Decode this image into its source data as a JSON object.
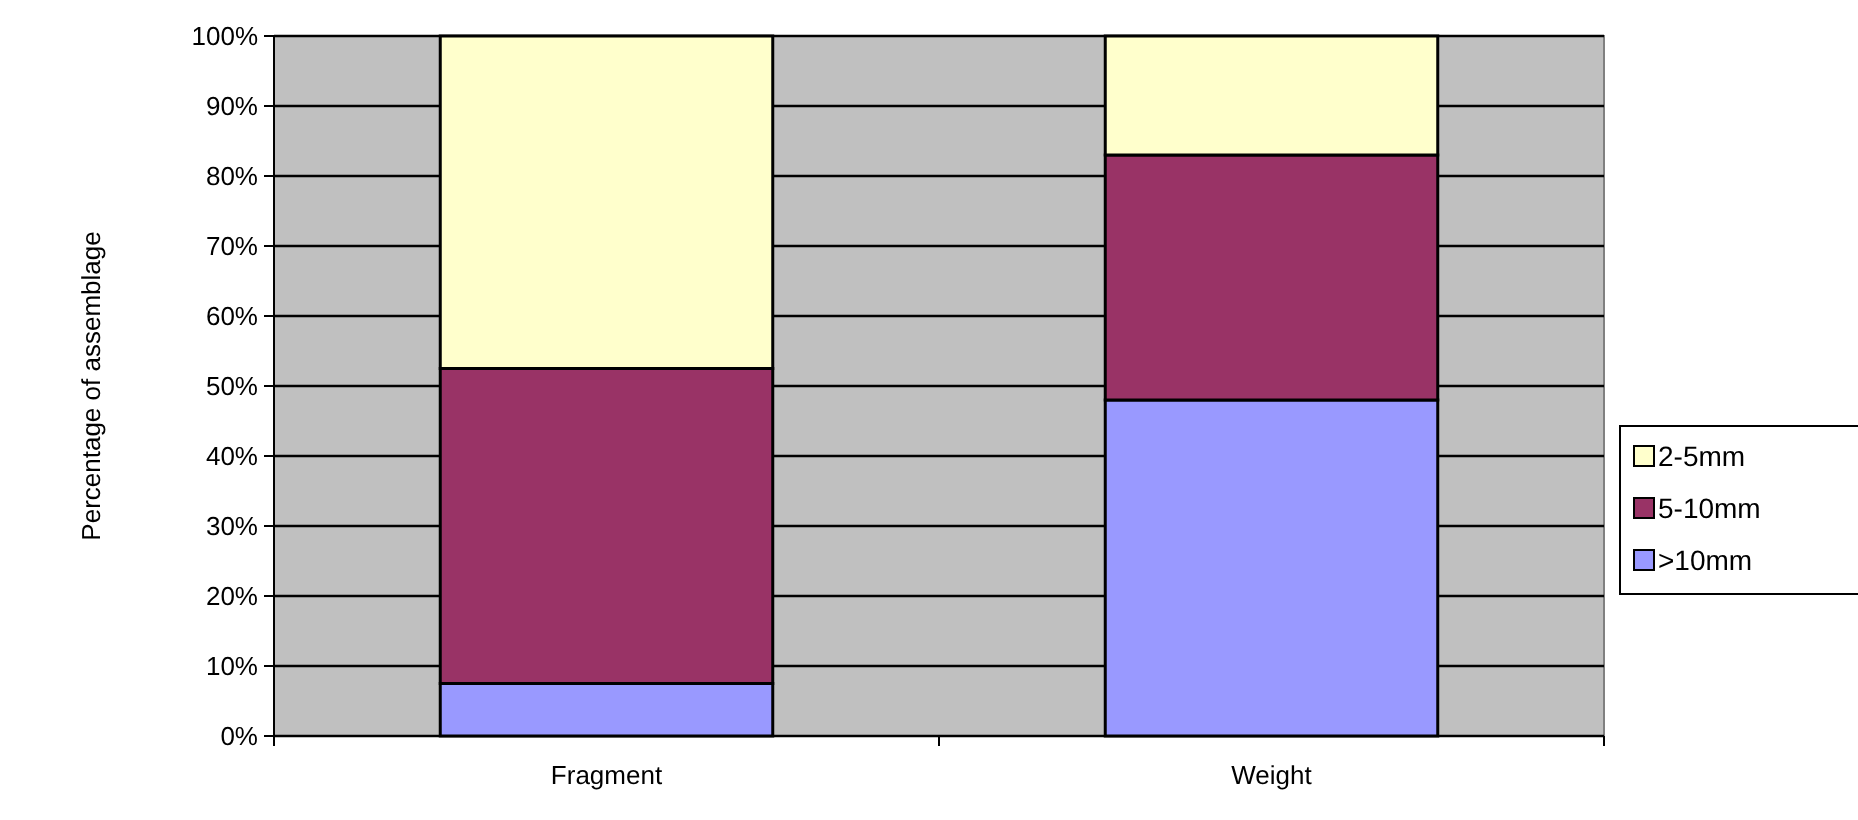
{
  "chart_data": {
    "type": "bar",
    "stacked": true,
    "ylabel": "Percentage of assemblage",
    "categories": [
      "Fragment",
      "Weight"
    ],
    "series": [
      {
        "name": ">10mm",
        "color": "#9999ff",
        "values": [
          7.5,
          48
        ]
      },
      {
        "name": "5-10mm",
        "color": "#993366",
        "values": [
          45,
          35
        ]
      },
      {
        "name": "2-5mm",
        "color": "#ffffcc",
        "values": [
          47.5,
          17
        ]
      }
    ],
    "ylim": [
      0,
      100
    ],
    "yticks": [
      {
        "value": 0,
        "label": "0%"
      },
      {
        "value": 10,
        "label": "10%"
      },
      {
        "value": 20,
        "label": "20%"
      },
      {
        "value": 30,
        "label": "30%"
      },
      {
        "value": 40,
        "label": "40%"
      },
      {
        "value": 50,
        "label": "50%"
      },
      {
        "value": 60,
        "label": "60%"
      },
      {
        "value": 70,
        "label": "70%"
      },
      {
        "value": 80,
        "label": "80%"
      },
      {
        "value": 90,
        "label": "90%"
      },
      {
        "value": 100,
        "label": "100%"
      }
    ],
    "grid": "y",
    "legend": "right"
  }
}
